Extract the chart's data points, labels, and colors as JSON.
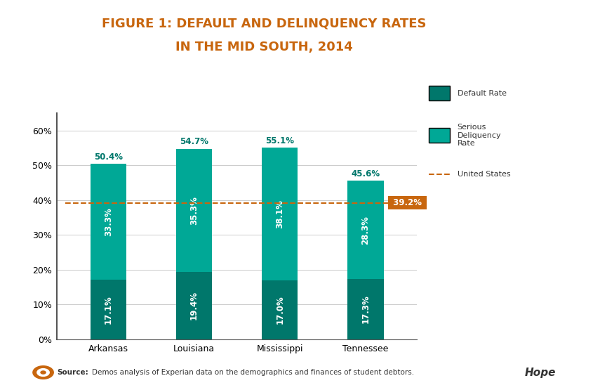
{
  "title_line1": "FIGURE 1: DEFAULT AND DELINQUENCY RATES",
  "title_line2": "IN THE MID SOUTH, 2014",
  "title_color": "#C8660E",
  "categories": [
    "Arkansas",
    "Louisiana",
    "Mississippi",
    "Tennessee"
  ],
  "default_rate": [
    17.1,
    19.4,
    17.0,
    17.3
  ],
  "delinquency_rate": [
    33.3,
    35.3,
    38.1,
    28.3
  ],
  "total_labels": [
    "50.4%",
    "54.7%",
    "55.1%",
    "45.6%"
  ],
  "default_labels": [
    "17.1%",
    "19.4%",
    "17.0%",
    "17.3%"
  ],
  "delinquency_labels": [
    "33.3%",
    "35.3%",
    "38.1%",
    "28.3%"
  ],
  "color_default": "#00776B",
  "color_delinquency": "#00A896",
  "us_line_value": 39.2,
  "us_line_color": "#C8660E",
  "us_line_label": "United States",
  "us_label_text": "39.2%",
  "legend_default": "Default Rate",
  "legend_delinquency": "Serious\nDeliquency\nRate",
  "ylim": [
    0,
    65
  ],
  "yticks": [
    0,
    10,
    20,
    30,
    40,
    50,
    60
  ],
  "ytick_labels": [
    "0%",
    "10%",
    "20%",
    "30%",
    "40%",
    "50%",
    "60%"
  ],
  "background_color": "#FFFFFF",
  "bar_width": 0.42,
  "source_text": "Demos analysis of Experian data on the demographics and finances of student debtors.",
  "source_label": "Source:",
  "source_icon_color": "#C8660E",
  "hope_text": "Hope"
}
